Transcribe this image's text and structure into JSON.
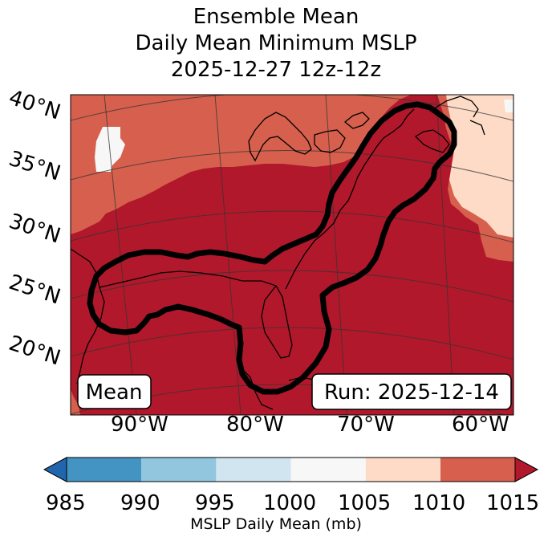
{
  "title": {
    "line1": "Ensemble Mean",
    "line2": "Daily Mean Minimum MSLP",
    "line3": "2025-12-27 12z-12z"
  },
  "map": {
    "lat_labels": [
      "40°N",
      "35°N",
      "30°N",
      "25°N",
      "20°N"
    ],
    "lon_labels": [
      "90°W",
      "80°W",
      "70°W",
      "60°W"
    ],
    "left_box": "Mean",
    "right_box": "Run: 2025-12-14"
  },
  "colorbar": {
    "label": "MSLP Daily Mean (mb)",
    "ticks": [
      "985",
      "990",
      "995",
      "1000",
      "1005",
      "1010",
      "1015"
    ],
    "colors": [
      "#4393c3",
      "#92c5de",
      "#d1e5f0",
      "#f7f7f7",
      "#fddbc7",
      "#d6604d"
    ],
    "under_color": "#2166ac",
    "over_color": "#b2182b"
  },
  "fill_colors": {
    "low": "#b2182b",
    "mid": "#d6604d",
    "high": "#fddbc7",
    "highest": "#f7f7f7"
  }
}
